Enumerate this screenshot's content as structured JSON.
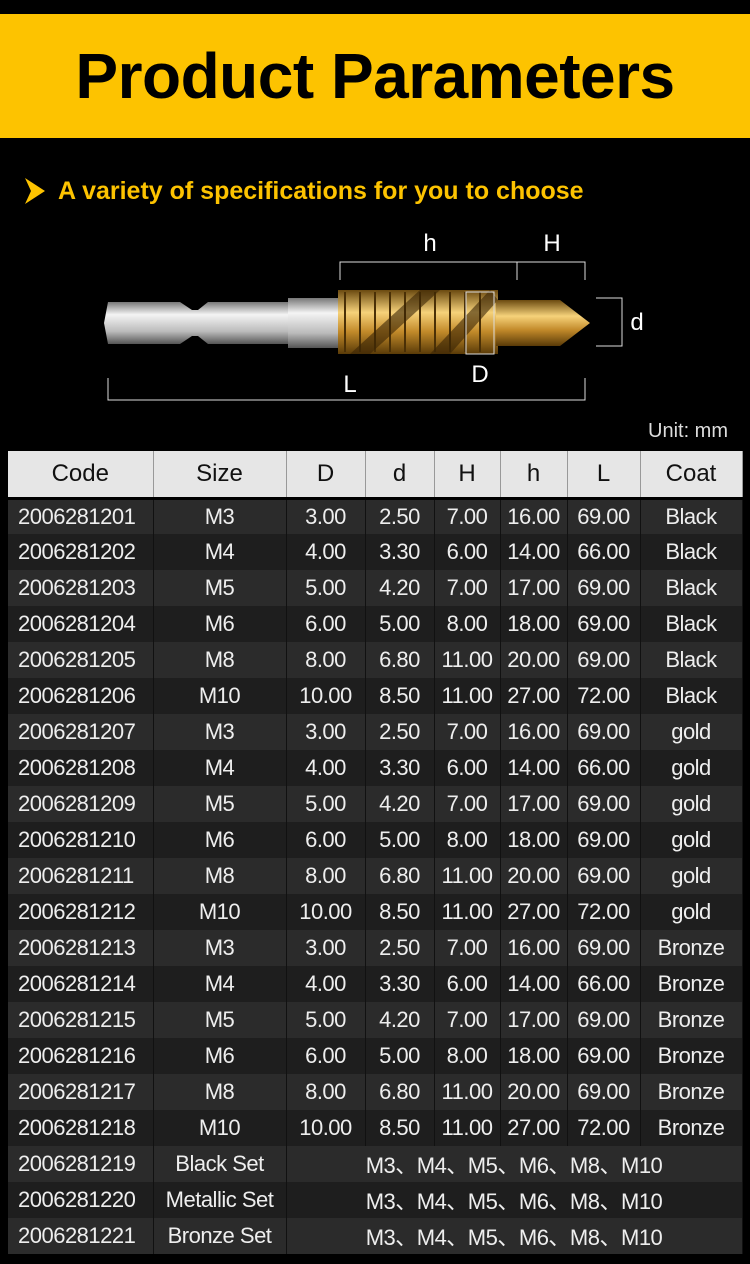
{
  "title": "Product Parameters",
  "subtitle": "A variety of specifications for you to choose",
  "diagram_labels": {
    "h": "h",
    "H": "H",
    "d": "d",
    "D": "D",
    "L": "L"
  },
  "unit": "Unit: mm",
  "colors": {
    "accent": "#fdc300"
  },
  "headers": [
    "Code",
    "Size",
    "D",
    "d",
    "H",
    "h",
    "L",
    "Coat"
  ],
  "rows": [
    [
      "2006281201",
      "M3",
      "3.00",
      "2.50",
      "7.00",
      "16.00",
      "69.00",
      "Black"
    ],
    [
      "2006281202",
      "M4",
      "4.00",
      "3.30",
      "6.00",
      "14.00",
      "66.00",
      "Black"
    ],
    [
      "2006281203",
      "M5",
      "5.00",
      "4.20",
      "7.00",
      "17.00",
      "69.00",
      "Black"
    ],
    [
      "2006281204",
      "M6",
      "6.00",
      "5.00",
      "8.00",
      "18.00",
      "69.00",
      "Black"
    ],
    [
      "2006281205",
      "M8",
      "8.00",
      "6.80",
      "11.00",
      "20.00",
      "69.00",
      "Black"
    ],
    [
      "2006281206",
      "M10",
      "10.00",
      "8.50",
      "11.00",
      "27.00",
      "72.00",
      "Black"
    ],
    [
      "2006281207",
      "M3",
      "3.00",
      "2.50",
      "7.00",
      "16.00",
      "69.00",
      "gold"
    ],
    [
      "2006281208",
      "M4",
      "4.00",
      "3.30",
      "6.00",
      "14.00",
      "66.00",
      "gold"
    ],
    [
      "2006281209",
      "M5",
      "5.00",
      "4.20",
      "7.00",
      "17.00",
      "69.00",
      "gold"
    ],
    [
      "2006281210",
      "M6",
      "6.00",
      "5.00",
      "8.00",
      "18.00",
      "69.00",
      "gold"
    ],
    [
      "2006281211",
      "M8",
      "8.00",
      "6.80",
      "11.00",
      "20.00",
      "69.00",
      "gold"
    ],
    [
      "2006281212",
      "M10",
      "10.00",
      "8.50",
      "11.00",
      "27.00",
      "72.00",
      "gold"
    ],
    [
      "2006281213",
      "M3",
      "3.00",
      "2.50",
      "7.00",
      "16.00",
      "69.00",
      "Bronze"
    ],
    [
      "2006281214",
      "M4",
      "4.00",
      "3.30",
      "6.00",
      "14.00",
      "66.00",
      "Bronze"
    ],
    [
      "2006281215",
      "M5",
      "5.00",
      "4.20",
      "7.00",
      "17.00",
      "69.00",
      "Bronze"
    ],
    [
      "2006281216",
      "M6",
      "6.00",
      "5.00",
      "8.00",
      "18.00",
      "69.00",
      "Bronze"
    ],
    [
      "2006281217",
      "M8",
      "8.00",
      "6.80",
      "11.00",
      "20.00",
      "69.00",
      "Bronze"
    ],
    [
      "2006281218",
      "M10",
      "10.00",
      "8.50",
      "11.00",
      "27.00",
      "72.00",
      "Bronze"
    ]
  ],
  "set_rows": [
    [
      "2006281219",
      "Black Set",
      "M3、M4、M5、M6、M8、M10"
    ],
    [
      "2006281220",
      "Metallic Set",
      "M3、M4、M5、M6、M8、M10"
    ],
    [
      "2006281221",
      "Bronze Set",
      "M3、M4、M5、M6、M8、M10"
    ]
  ]
}
